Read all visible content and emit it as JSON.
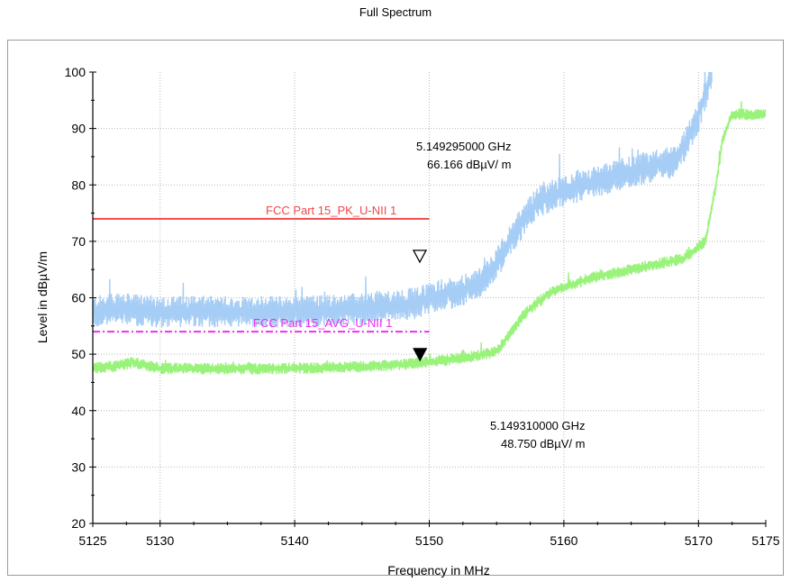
{
  "title": "Full Spectrum",
  "chart_data": {
    "type": "line",
    "xlabel": "Frequency in MHz",
    "ylabel": "Level in dBµV/m",
    "xlim": [
      5125,
      5175
    ],
    "ylim": [
      20,
      100
    ],
    "x_ticks": [
      5125,
      5130,
      5140,
      5150,
      5160,
      5170,
      5175
    ],
    "y_ticks": [
      20,
      30,
      40,
      50,
      60,
      70,
      80,
      90,
      100
    ],
    "grid": true,
    "series": [
      {
        "color": "#a6cdf5",
        "noise": 2.2,
        "x": [
          5125,
          5127,
          5130,
          5135,
          5140,
          5145,
          5147,
          5149,
          5150,
          5152,
          5153.5,
          5155,
          5156.5,
          5158,
          5160,
          5163,
          5166,
          5168,
          5169,
          5170,
          5171
        ],
        "y": [
          57.5,
          58,
          57.5,
          57.5,
          57.5,
          58,
          58.5,
          59,
          60,
          61,
          62,
          66,
          72,
          77,
          79,
          81,
          83,
          84,
          87,
          92,
          100
        ]
      },
      {
        "color": "#99f27a",
        "noise": 0.8,
        "x": [
          5125,
          5127,
          5128,
          5130,
          5135,
          5140,
          5145,
          5148,
          5150,
          5153,
          5155,
          5155.5,
          5157,
          5159,
          5162,
          5166,
          5169,
          5170.5,
          5171.3,
          5171.8,
          5172.5,
          5175
        ],
        "y": [
          47.5,
          48,
          48.5,
          47.5,
          47.4,
          47.5,
          47.8,
          48.2,
          48.6,
          49.5,
          50.5,
          52,
          57,
          61,
          63.5,
          65.5,
          67,
          70,
          80,
          88,
          92.5,
          92.5
        ]
      }
    ],
    "limits": [
      {
        "label": "FCC Part 15_PK_U-NII 1",
        "level": 74,
        "x_start": 5125,
        "x_end": 5150,
        "color": "#f04848",
        "dashed": false
      },
      {
        "label": "FCC Part 15_AVG_U-NII 1",
        "level": 54,
        "x_start": 5125,
        "x_end": 5150,
        "color": "#ee2fee",
        "dashed": true
      }
    ],
    "markers": [
      {
        "x": 5149.295,
        "y": 66.166,
        "filled": false,
        "freq_text": "5.149295000 GHz",
        "level_text": "66.166 dBµV/ m"
      },
      {
        "x": 5149.31,
        "y": 48.75,
        "filled": true,
        "freq_text": "5.149310000 GHz",
        "level_text": "48.750 dBµV/ m"
      }
    ]
  }
}
